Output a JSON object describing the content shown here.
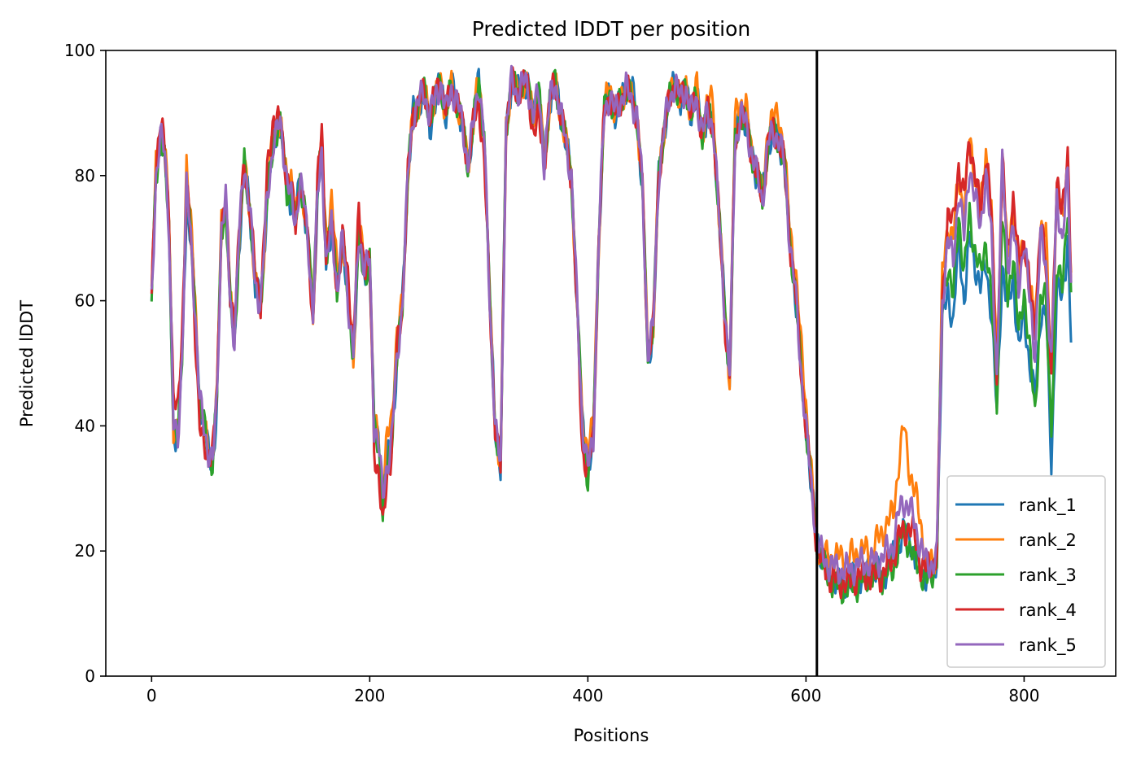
{
  "chart_data": {
    "type": "line",
    "title": "Predicted lDDT per position",
    "xlabel": "Positions",
    "ylabel": "Predicted lDDT",
    "xlim": [
      -42,
      884
    ],
    "ylim": [
      0,
      100
    ],
    "xticks": [
      0,
      200,
      400,
      600,
      800
    ],
    "yticks": [
      0,
      20,
      40,
      60,
      80,
      100
    ],
    "grid": false,
    "legend_position": "lower-right",
    "vline_x": 610,
    "vline_color": "#000000",
    "base_x": [
      0,
      4,
      8,
      12,
      16,
      20,
      24,
      28,
      32,
      36,
      40,
      44,
      48,
      52,
      56,
      60,
      64,
      68,
      72,
      76,
      80,
      85,
      90,
      95,
      100,
      106,
      112,
      118,
      124,
      128,
      132,
      136,
      140,
      144,
      148,
      152,
      156,
      160,
      165,
      170,
      175,
      180,
      185,
      190,
      195,
      200,
      204,
      208,
      212,
      216,
      220,
      225,
      230,
      235,
      240,
      245,
      250,
      255,
      260,
      265,
      270,
      275,
      280,
      285,
      290,
      295,
      300,
      305,
      310,
      315,
      320,
      325,
      330,
      335,
      340,
      345,
      350,
      355,
      360,
      365,
      370,
      375,
      380,
      385,
      390,
      395,
      400,
      405,
      410,
      415,
      420,
      425,
      430,
      435,
      440,
      445,
      450,
      455,
      460,
      465,
      470,
      475,
      480,
      485,
      490,
      495,
      500,
      505,
      510,
      515,
      520,
      525,
      530,
      535,
      540,
      545,
      550,
      555,
      560,
      565,
      570,
      575,
      580,
      585,
      590,
      595,
      600,
      605,
      610,
      615,
      620,
      630,
      640,
      650,
      660,
      670,
      680,
      685,
      690,
      695,
      700,
      705,
      710,
      715,
      720,
      725,
      730,
      735,
      740,
      745,
      750,
      755,
      760,
      765,
      770,
      775,
      780,
      785,
      790,
      795,
      800,
      805,
      810,
      815,
      820,
      825,
      830,
      835,
      840,
      843
    ],
    "series": [
      {
        "name": "rank_1",
        "color": "#1f77b4",
        "offsets": [
          0,
          0,
          0,
          0,
          -2,
          0,
          0,
          0,
          -3,
          0,
          0,
          0,
          0,
          0,
          0,
          -2,
          0,
          0,
          0,
          0,
          -2,
          0,
          0,
          0,
          0,
          0,
          0,
          0,
          -2,
          0,
          0,
          0,
          0,
          0,
          0,
          0,
          0,
          0,
          0,
          0,
          0,
          0,
          0,
          0,
          -2,
          0,
          0,
          0,
          2,
          0,
          0,
          0,
          0,
          0,
          0,
          0,
          0,
          -3,
          0,
          0,
          0,
          0,
          0,
          0,
          0,
          0,
          0,
          0,
          0,
          0,
          0,
          0,
          0,
          0,
          0,
          0,
          0,
          0,
          0,
          0,
          0,
          0,
          0,
          0,
          0,
          0,
          0,
          0,
          0,
          0,
          0,
          0,
          0,
          0,
          2,
          0,
          0,
          -3,
          0,
          0,
          0,
          0,
          0,
          0,
          0,
          0,
          0,
          0,
          0,
          0,
          0,
          0,
          0,
          0,
          0,
          0,
          0,
          0,
          0,
          0,
          0,
          0,
          0,
          0,
          0,
          0,
          0,
          0,
          0,
          0,
          -1,
          -2,
          -2,
          -2,
          -1,
          -3,
          -2,
          -5,
          -5,
          -4,
          -6,
          -4,
          -2,
          -2,
          0,
          -4,
          -8,
          -10,
          -8,
          -10,
          -12,
          -10,
          -10,
          -14,
          -12,
          -6,
          -16,
          -8,
          -8,
          -10,
          -12,
          -10,
          -8,
          -12,
          -8,
          -16,
          -14,
          -10,
          -10,
          -8
        ]
      },
      {
        "name": "rank_2",
        "color": "#ff7f0e",
        "offsets": [
          0,
          2,
          1,
          0,
          2,
          0,
          2,
          0,
          5,
          2,
          2,
          0,
          0,
          0,
          2,
          0,
          1,
          0,
          0,
          0,
          0,
          0,
          0,
          0,
          0,
          0,
          2,
          0,
          0,
          4,
          0,
          0,
          0,
          0,
          0,
          2,
          0,
          5,
          4,
          3,
          0,
          0,
          0,
          0,
          2,
          0,
          0,
          2,
          0,
          4,
          4,
          4,
          0,
          0,
          0,
          0,
          0,
          0,
          0,
          0,
          0,
          0,
          0,
          0,
          0,
          0,
          1,
          0,
          0,
          0,
          0,
          0,
          0,
          0,
          0,
          0,
          0,
          0,
          0,
          0,
          0,
          0,
          0,
          0,
          0,
          0,
          4,
          2,
          0,
          0,
          2,
          0,
          0,
          0,
          0,
          0,
          0,
          0,
          0,
          0,
          0,
          0,
          0,
          0,
          0,
          0,
          2,
          0,
          2,
          4,
          0,
          0,
          0,
          4,
          2,
          3,
          0,
          2,
          0,
          3,
          2,
          4,
          2,
          2,
          4,
          4,
          4,
          2,
          0,
          0,
          1,
          2,
          2,
          2,
          2,
          4,
          5,
          8,
          12,
          6,
          5,
          4,
          0,
          0,
          0,
          4,
          2,
          4,
          2,
          4,
          4,
          4,
          2,
          4,
          4,
          2,
          0,
          0,
          4,
          2,
          0,
          2,
          4,
          2,
          4,
          0,
          0,
          4,
          2,
          0
        ]
      },
      {
        "name": "rank_3",
        "color": "#2ca02c",
        "offsets": [
          0,
          0,
          0,
          -2,
          0,
          0,
          0,
          0,
          0,
          0,
          0,
          0,
          0,
          0,
          0,
          0,
          0,
          -2,
          0,
          0,
          -2,
          0,
          0,
          0,
          0,
          0,
          0,
          0,
          -2,
          0,
          0,
          0,
          0,
          0,
          2,
          2,
          0,
          2,
          0,
          0,
          0,
          0,
          0,
          0,
          -2,
          0,
          0,
          0,
          -3,
          0,
          0,
          0,
          0,
          0,
          0,
          0,
          0,
          0,
          0,
          0,
          0,
          0,
          0,
          0,
          0,
          0,
          0,
          0,
          0,
          0,
          0,
          0,
          0,
          0,
          0,
          0,
          0,
          0,
          0,
          0,
          0,
          0,
          0,
          0,
          0,
          0,
          -2,
          0,
          0,
          0,
          0,
          0,
          0,
          0,
          0,
          0,
          0,
          0,
          0,
          0,
          0,
          0,
          0,
          0,
          0,
          0,
          0,
          0,
          0,
          0,
          0,
          0,
          0,
          0,
          0,
          0,
          0,
          0,
          0,
          0,
          0,
          0,
          0,
          0,
          0,
          0,
          0,
          0,
          0,
          -1,
          -2,
          -3,
          -3,
          -3,
          -2,
          -3,
          -4,
          -5,
          -5,
          -6,
          -6,
          -4,
          -3,
          -2,
          0,
          0,
          -4,
          -6,
          -4,
          -6,
          -8,
          -8,
          -8,
          -10,
          -10,
          -4,
          -8,
          -6,
          -4,
          -8,
          -8,
          -8,
          -10,
          -10,
          -6,
          -10,
          -12,
          -6,
          -6,
          -2
        ]
      },
      {
        "name": "rank_4",
        "color": "#d62728",
        "offsets": [
          0,
          2,
          3,
          0,
          2,
          4,
          5,
          4,
          0,
          0,
          -3,
          -4,
          -4,
          0,
          2,
          0,
          1,
          0,
          0,
          4,
          0,
          0,
          0,
          2,
          0,
          4,
          4,
          0,
          0,
          2,
          0,
          0,
          -1,
          0,
          -2,
          2,
          4,
          2,
          0,
          0,
          0,
          4,
          2,
          4,
          0,
          0,
          -4,
          -5,
          -5,
          -2,
          -2,
          2,
          0,
          0,
          0,
          0,
          0,
          0,
          1,
          0,
          0,
          0,
          0,
          0,
          0,
          0,
          -3,
          -4,
          0,
          0,
          0,
          0,
          0,
          0,
          0,
          0,
          -3,
          -4,
          0,
          0,
          0,
          0,
          0,
          0,
          -2,
          -4,
          0,
          0,
          0,
          0,
          0,
          0,
          0,
          0,
          0,
          0,
          0,
          0,
          0,
          0,
          0,
          0,
          0,
          0,
          0,
          0,
          0,
          0,
          0,
          0,
          0,
          -2,
          0,
          0,
          0,
          0,
          0,
          0,
          0,
          0,
          0,
          0,
          0,
          0,
          0,
          0,
          0,
          0,
          -1,
          -1,
          -2,
          -2,
          -2,
          -2,
          -2,
          -3,
          -2,
          -4,
          -5,
          -3,
          -2,
          -3,
          -1,
          0,
          0,
          0,
          4,
          6,
          4,
          6,
          4,
          4,
          2,
          4,
          4,
          0,
          0,
          2,
          4,
          4,
          0,
          2,
          4,
          2,
          0,
          0,
          2,
          6,
          2,
          2
        ]
      },
      {
        "name": "rank_5",
        "color": "#9467bd",
        "offsets": [
          0,
          0,
          0,
          0,
          0,
          0,
          0,
          0,
          0,
          0,
          0,
          0,
          0,
          0,
          0,
          0,
          0,
          0,
          0,
          0,
          0,
          0,
          0,
          0,
          0,
          0,
          0,
          0,
          0,
          0,
          0,
          0,
          0,
          0,
          0,
          0,
          0,
          0,
          0,
          0,
          0,
          0,
          0,
          0,
          0,
          0,
          0,
          0,
          0,
          0,
          0,
          0,
          0,
          0,
          0,
          0,
          0,
          0,
          0,
          0,
          0,
          0,
          0,
          0,
          0,
          0,
          0,
          0,
          0,
          0,
          0,
          0,
          0,
          0,
          0,
          0,
          0,
          0,
          0,
          0,
          0,
          0,
          0,
          0,
          0,
          0,
          0,
          0,
          0,
          0,
          0,
          0,
          0,
          0,
          0,
          0,
          0,
          0,
          0,
          0,
          0,
          0,
          0,
          0,
          0,
          0,
          0,
          0,
          0,
          0,
          0,
          0,
          0,
          0,
          0,
          0,
          0,
          0,
          0,
          0,
          0,
          0,
          0,
          0,
          0,
          0,
          0,
          0,
          0,
          0,
          0,
          0,
          0,
          0,
          0,
          0,
          0,
          0,
          0,
          0,
          0,
          0,
          0,
          0,
          0,
          0,
          0,
          0,
          0,
          0,
          0,
          0,
          0,
          0,
          0,
          0,
          0,
          0,
          0,
          0,
          0,
          0,
          0,
          0,
          0,
          0,
          0,
          0,
          0,
          0
        ]
      }
    ],
    "base_y": [
      60,
      80,
      86,
      84,
      72,
      40,
      37,
      52,
      78,
      70,
      58,
      44,
      40,
      36,
      34,
      45,
      72,
      76,
      60,
      54,
      70,
      82,
      75,
      62,
      60,
      76,
      86,
      88,
      80,
      76,
      72,
      80,
      75,
      68,
      58,
      76,
      84,
      66,
      72,
      62,
      70,
      60,
      52,
      70,
      66,
      66,
      40,
      38,
      28,
      34,
      38,
      50,
      60,
      80,
      90,
      92,
      93,
      90,
      92,
      95,
      90,
      94,
      92,
      88,
      82,
      88,
      95,
      86,
      60,
      40,
      33,
      88,
      95,
      93,
      95,
      94,
      90,
      93,
      82,
      92,
      95,
      90,
      85,
      80,
      60,
      40,
      33,
      38,
      70,
      90,
      93,
      90,
      92,
      94,
      92,
      90,
      78,
      52,
      56,
      80,
      88,
      92,
      95,
      92,
      94,
      90,
      92,
      87,
      90,
      88,
      74,
      60,
      48,
      85,
      90,
      88,
      84,
      80,
      76,
      85,
      87,
      86,
      82,
      70,
      62,
      50,
      40,
      30,
      22,
      19,
      18,
      17,
      17,
      18,
      18,
      19,
      21,
      26,
      28,
      27,
      24,
      21,
      18,
      18,
      19,
      60,
      70,
      66,
      78,
      70,
      82,
      76,
      72,
      80,
      70,
      48,
      82,
      66,
      72,
      62,
      70,
      60,
      52,
      70,
      66,
      50,
      76,
      70,
      80,
      62
    ]
  }
}
